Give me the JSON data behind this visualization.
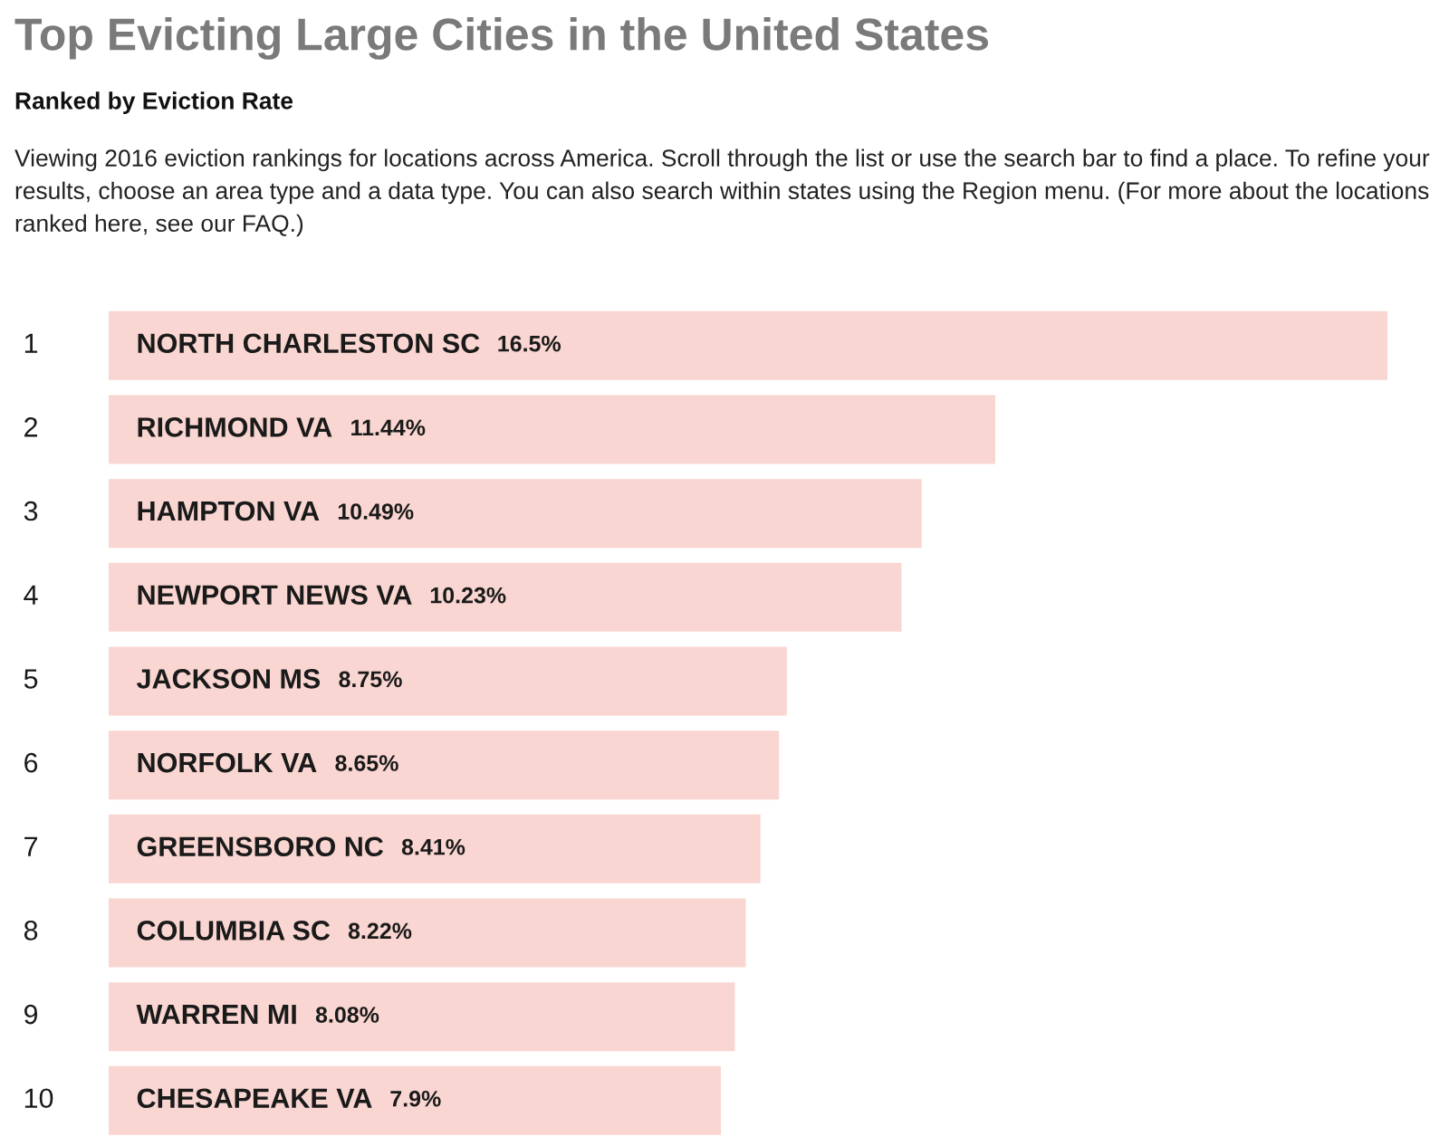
{
  "chart_data": {
    "type": "bar",
    "orientation": "horizontal",
    "title": "Top Evicting Large Cities in the United States",
    "subtitle": "Ranked by Eviction Rate",
    "categories": [
      "NORTH CHARLESTON SC",
      "RICHMOND VA",
      "HAMPTON VA",
      "NEWPORT NEWS VA",
      "JACKSON MS",
      "NORFOLK VA",
      "GREENSBORO NC",
      "COLUMBIA SC",
      "WARREN MI",
      "CHESAPEAKE VA"
    ],
    "values": [
      16.5,
      11.44,
      10.49,
      10.23,
      8.75,
      8.65,
      8.41,
      8.22,
      8.08,
      7.9
    ],
    "value_labels": [
      "16.5%",
      "11.44%",
      "10.49%",
      "10.23%",
      "8.75%",
      "8.65%",
      "8.41%",
      "8.22%",
      "8.08%",
      "7.9%"
    ],
    "color": "#f9d6d1",
    "xlim": [
      0,
      16.5
    ],
    "annotations": [
      "Viewing 2016 eviction rankings for locations across America. Scroll through the list or use the search bar to find a place. To refine your results, choose an area type and a data type. You can also search within states using the Region menu. (For more about the locations ranked here, see our FAQ.)",
      "1",
      "2",
      "3",
      "4",
      "5",
      "6",
      "7",
      "8",
      "9",
      "10"
    ]
  }
}
